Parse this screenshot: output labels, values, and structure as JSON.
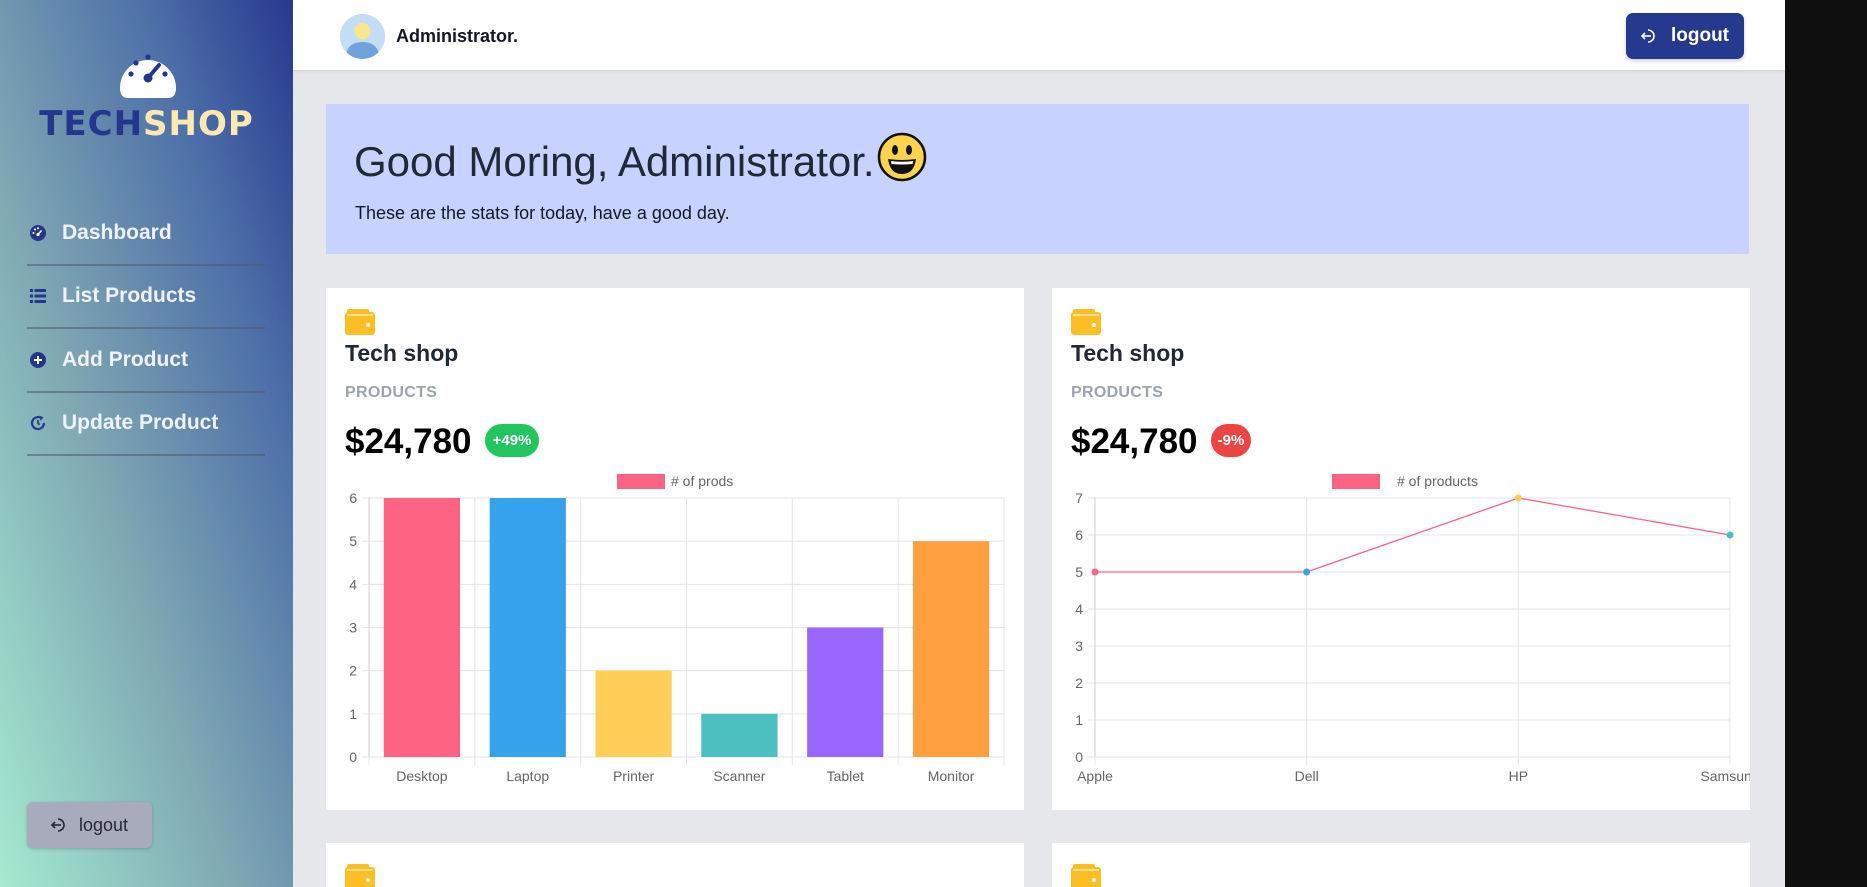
{
  "sidebar": {
    "brand_tech": "TECH",
    "brand_shop": "SHOP",
    "items": [
      {
        "label": "Dashboard",
        "icon": "gauge-icon"
      },
      {
        "label": "List Products",
        "icon": "list-icon"
      },
      {
        "label": "Add Product",
        "icon": "plus-circle-icon"
      },
      {
        "label": "Update Product",
        "icon": "refresh-icon"
      }
    ],
    "logout_label": "logout"
  },
  "header": {
    "user_name": "Administrator.",
    "logout_label": "logout"
  },
  "greeting": {
    "title": "Good Moring, Administrator.",
    "emoji": "😃",
    "subtitle": "These are the stats for today, have a good day."
  },
  "colors": {
    "accent": "#25398f",
    "banner": "#c7d2fe",
    "badge_up": "#22c55e",
    "badge_down": "#ef4444",
    "wallet": "#fbbf24"
  },
  "cards": [
    {
      "title": "Tech shop",
      "subtitle": "PRODUCTS",
      "value": "$24,780",
      "badge": "+49%"
    },
    {
      "title": "Tech shop",
      "subtitle": "PRODUCTS",
      "value": "$24,780",
      "badge": "-9%"
    }
  ],
  "chart_data": [
    {
      "type": "bar",
      "categories": [
        "Desktop",
        "Laptop",
        "Printer",
        "Scanner",
        "Tablet",
        "Monitor"
      ],
      "series": [
        {
          "name": "# of prods",
          "values": [
            6,
            6,
            2,
            1,
            3,
            5
          ]
        }
      ],
      "colors": [
        "#ff6384",
        "#36a2eb",
        "#ffce56",
        "#4bc0c0",
        "#9966ff",
        "#ff9f40"
      ],
      "legend_swatch": "#ff6384",
      "ylim": [
        0,
        6
      ],
      "yticks": [
        "0",
        "1",
        "2",
        "3",
        "4",
        "5",
        "6"
      ],
      "grid": true,
      "legend": "top"
    },
    {
      "type": "line",
      "categories": [
        "Apple",
        "Dell",
        "HP",
        "Samsung"
      ],
      "series": [
        {
          "name": "# of products",
          "values": [
            5,
            5,
            7,
            6
          ]
        }
      ],
      "point_colors": [
        "#ff6384",
        "#36a2eb",
        "#ffce56",
        "#4bc0c0"
      ],
      "line_color": "#ff6384",
      "legend_swatch": "#ff6384",
      "ylim": [
        0,
        7
      ],
      "yticks": [
        "0",
        "1",
        "2",
        "3",
        "4",
        "5",
        "6",
        "7"
      ],
      "grid": true,
      "legend": "top"
    }
  ]
}
